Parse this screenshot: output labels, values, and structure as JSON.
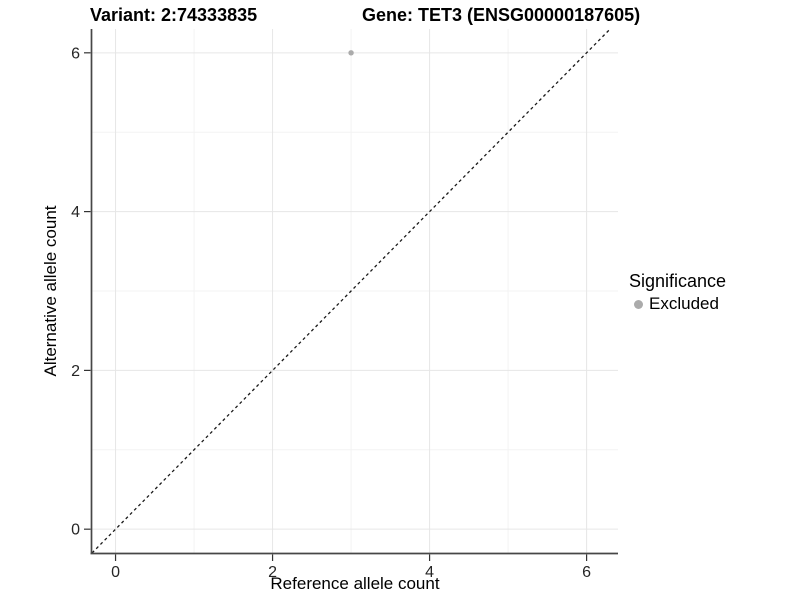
{
  "header": {
    "title_left": "Variant: 2:74333835",
    "title_right": "Gene: TET3 (ENSG00000187605)"
  },
  "chart_data": {
    "type": "scatter",
    "xlabel": "Reference allele count",
    "ylabel": "Alternative allele count",
    "xlim": [
      -0.3,
      6.4
    ],
    "ylim": [
      -0.3,
      6.3
    ],
    "xticks": [
      0,
      2,
      4,
      6
    ],
    "yticks": [
      0,
      2,
      4,
      6
    ],
    "xminor": [
      1,
      3,
      5
    ],
    "yminor": [
      1,
      3,
      5
    ],
    "grid": "major+minor",
    "points": [
      {
        "x": 3,
        "y": 6,
        "significance": "Excluded"
      }
    ],
    "reference_line": {
      "type": "identity",
      "slope": 1,
      "intercept": 0,
      "style": "dashed"
    },
    "legend": {
      "title": "Significance",
      "position": "right",
      "entries": [
        {
          "label": "Excluded",
          "color": "#ababab",
          "marker": "circle"
        }
      ]
    },
    "colors": {
      "background": "#ffffff",
      "point": "#ababab",
      "grid_major": "#e6e6e6",
      "grid_minor": "#f3f3f3",
      "axis_line": "#474747",
      "tick": "#333333",
      "text": "#262626",
      "ref_line": "#1a1a1a"
    }
  }
}
